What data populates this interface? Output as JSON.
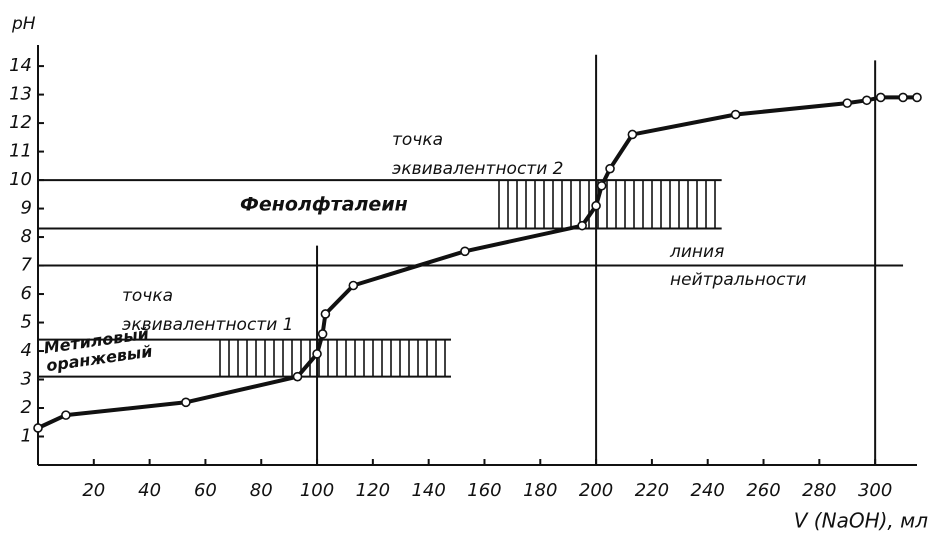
{
  "chart_data": {
    "type": "line",
    "y_label": "pH",
    "x_label": "V (NaOH), мл",
    "x": [
      0,
      10,
      53,
      93,
      100,
      102,
      103,
      113,
      153,
      195,
      200,
      202,
      205,
      213,
      250,
      290,
      297,
      302,
      310,
      315
    ],
    "values": [
      1.3,
      1.75,
      2.2,
      3.1,
      3.9,
      4.6,
      5.3,
      6.3,
      7.5,
      8.4,
      9.1,
      9.8,
      10.4,
      11.6,
      12.3,
      12.7,
      12.8,
      12.9,
      12.9,
      12.9
    ],
    "color": "#111111",
    "xlim": [
      0,
      315
    ],
    "ylim": [
      0,
      14.6
    ],
    "xticks": [
      20,
      40,
      60,
      80,
      100,
      120,
      140,
      160,
      180,
      200,
      220,
      240,
      260,
      280,
      300
    ],
    "yticks": [
      1,
      2,
      3,
      4,
      5,
      6,
      7,
      8,
      9,
      10,
      11,
      12,
      13,
      14
    ],
    "bands": [
      {
        "name": [
          "Метиловый",
          "оранжевый"
        ],
        "range": [
          3.1,
          4.4
        ],
        "span": [
          0,
          148
        ],
        "hatch": [
          63,
          148
        ]
      },
      {
        "name": [
          "Фенолфталеин"
        ],
        "range": [
          8.3,
          10
        ],
        "span": [
          0,
          245
        ],
        "hatch": [
          163,
          245
        ]
      }
    ],
    "vlines": [
      {
        "x": 100,
        "to": 7.7
      },
      {
        "x": 200,
        "to": 14.4
      },
      {
        "x": 300,
        "to": 14.2
      }
    ],
    "neutral_line": {
      "y": 7,
      "to": 310,
      "label": [
        "линия",
        "нейтральности"
      ]
    },
    "annotations": [
      [
        "точка",
        "эквивалентности 1"
      ],
      [
        "точка",
        "эквивалентности 2"
      ]
    ]
  }
}
